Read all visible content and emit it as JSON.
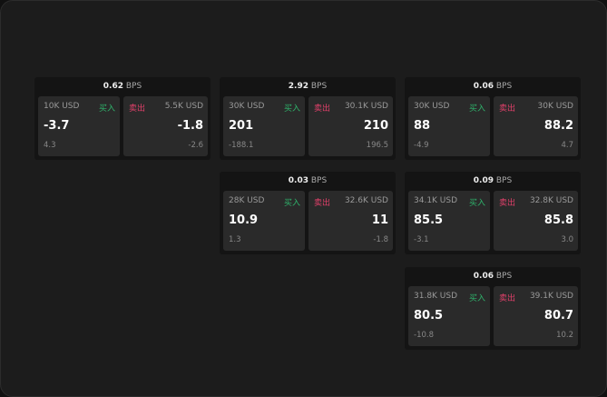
{
  "labels": {
    "buy": "买入",
    "sell": "卖出",
    "unit": "BPS"
  },
  "colors": {
    "buy": "#2fb36b",
    "sell": "#e0406a"
  },
  "cards": [
    {
      "spread": "0.62",
      "bid_size": "10K USD",
      "bid": "-3.7",
      "bid_chg": "4.3",
      "ask_size": "5.5K USD",
      "ask": "-1.8",
      "ask_chg": "-2.6"
    },
    {
      "spread": "2.92",
      "bid_size": "30K USD",
      "bid": "201",
      "bid_chg": "-188.1",
      "ask_size": "30.1K USD",
      "ask": "210",
      "ask_chg": "196.5"
    },
    {
      "spread": "0.06",
      "bid_size": "30K USD",
      "bid": "88",
      "bid_chg": "-4.9",
      "ask_size": "30K USD",
      "ask": "88.2",
      "ask_chg": "4.7"
    },
    {
      "spread": "0.03",
      "bid_size": "28K USD",
      "bid": "10.9",
      "bid_chg": "1.3",
      "ask_size": "32.6K USD",
      "ask": "11",
      "ask_chg": "-1.8"
    },
    {
      "spread": "0.09",
      "bid_size": "34.1K USD",
      "bid": "85.5",
      "bid_chg": "-3.1",
      "ask_size": "32.8K USD",
      "ask": "85.8",
      "ask_chg": "3.0"
    },
    {
      "spread": "0.06",
      "bid_size": "31.8K USD",
      "bid": "80.5",
      "bid_chg": "-10.8",
      "ask_size": "39.1K USD",
      "ask": "80.7",
      "ask_chg": "10.2"
    }
  ]
}
